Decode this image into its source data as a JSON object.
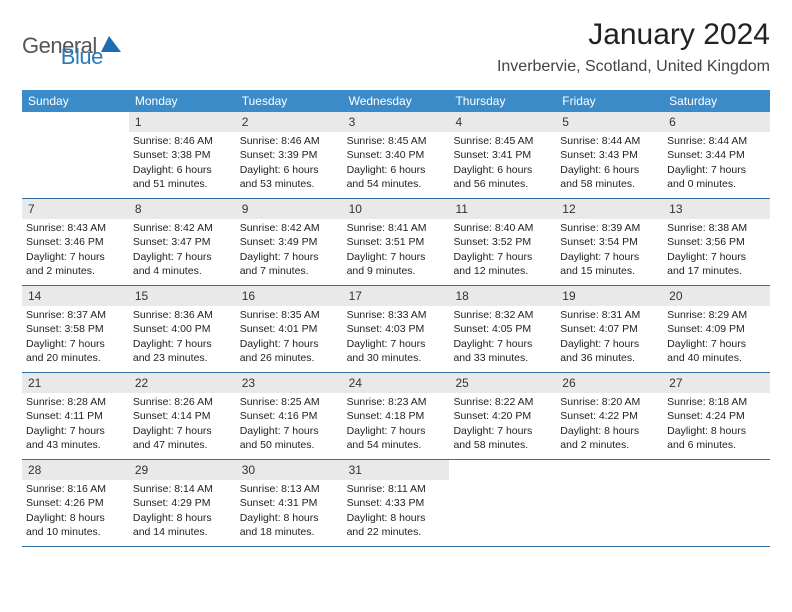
{
  "colors": {
    "header_bg": "#3b8bc9",
    "daynum_bg": "#e9e9e9",
    "week_divider": "#2f6fa3",
    "logo_gray": "#555555",
    "logo_blue": "#2a7ab9"
  },
  "logo": {
    "part1": "General",
    "part2": "Blue"
  },
  "title": "January 2024",
  "location": "Inverbervie, Scotland, United Kingdom",
  "days_of_week": [
    "Sunday",
    "Monday",
    "Tuesday",
    "Wednesday",
    "Thursday",
    "Friday",
    "Saturday"
  ],
  "weeks": [
    [
      {
        "empty": true
      },
      {
        "n": "1",
        "sunrise": "Sunrise: 8:46 AM",
        "sunset": "Sunset: 3:38 PM",
        "daylight": "Daylight: 6 hours and 51 minutes."
      },
      {
        "n": "2",
        "sunrise": "Sunrise: 8:46 AM",
        "sunset": "Sunset: 3:39 PM",
        "daylight": "Daylight: 6 hours and 53 minutes."
      },
      {
        "n": "3",
        "sunrise": "Sunrise: 8:45 AM",
        "sunset": "Sunset: 3:40 PM",
        "daylight": "Daylight: 6 hours and 54 minutes."
      },
      {
        "n": "4",
        "sunrise": "Sunrise: 8:45 AM",
        "sunset": "Sunset: 3:41 PM",
        "daylight": "Daylight: 6 hours and 56 minutes."
      },
      {
        "n": "5",
        "sunrise": "Sunrise: 8:44 AM",
        "sunset": "Sunset: 3:43 PM",
        "daylight": "Daylight: 6 hours and 58 minutes."
      },
      {
        "n": "6",
        "sunrise": "Sunrise: 8:44 AM",
        "sunset": "Sunset: 3:44 PM",
        "daylight": "Daylight: 7 hours and 0 minutes."
      }
    ],
    [
      {
        "n": "7",
        "sunrise": "Sunrise: 8:43 AM",
        "sunset": "Sunset: 3:46 PM",
        "daylight": "Daylight: 7 hours and 2 minutes."
      },
      {
        "n": "8",
        "sunrise": "Sunrise: 8:42 AM",
        "sunset": "Sunset: 3:47 PM",
        "daylight": "Daylight: 7 hours and 4 minutes."
      },
      {
        "n": "9",
        "sunrise": "Sunrise: 8:42 AM",
        "sunset": "Sunset: 3:49 PM",
        "daylight": "Daylight: 7 hours and 7 minutes."
      },
      {
        "n": "10",
        "sunrise": "Sunrise: 8:41 AM",
        "sunset": "Sunset: 3:51 PM",
        "daylight": "Daylight: 7 hours and 9 minutes."
      },
      {
        "n": "11",
        "sunrise": "Sunrise: 8:40 AM",
        "sunset": "Sunset: 3:52 PM",
        "daylight": "Daylight: 7 hours and 12 minutes."
      },
      {
        "n": "12",
        "sunrise": "Sunrise: 8:39 AM",
        "sunset": "Sunset: 3:54 PM",
        "daylight": "Daylight: 7 hours and 15 minutes."
      },
      {
        "n": "13",
        "sunrise": "Sunrise: 8:38 AM",
        "sunset": "Sunset: 3:56 PM",
        "daylight": "Daylight: 7 hours and 17 minutes."
      }
    ],
    [
      {
        "n": "14",
        "sunrise": "Sunrise: 8:37 AM",
        "sunset": "Sunset: 3:58 PM",
        "daylight": "Daylight: 7 hours and 20 minutes."
      },
      {
        "n": "15",
        "sunrise": "Sunrise: 8:36 AM",
        "sunset": "Sunset: 4:00 PM",
        "daylight": "Daylight: 7 hours and 23 minutes."
      },
      {
        "n": "16",
        "sunrise": "Sunrise: 8:35 AM",
        "sunset": "Sunset: 4:01 PM",
        "daylight": "Daylight: 7 hours and 26 minutes."
      },
      {
        "n": "17",
        "sunrise": "Sunrise: 8:33 AM",
        "sunset": "Sunset: 4:03 PM",
        "daylight": "Daylight: 7 hours and 30 minutes."
      },
      {
        "n": "18",
        "sunrise": "Sunrise: 8:32 AM",
        "sunset": "Sunset: 4:05 PM",
        "daylight": "Daylight: 7 hours and 33 minutes."
      },
      {
        "n": "19",
        "sunrise": "Sunrise: 8:31 AM",
        "sunset": "Sunset: 4:07 PM",
        "daylight": "Daylight: 7 hours and 36 minutes."
      },
      {
        "n": "20",
        "sunrise": "Sunrise: 8:29 AM",
        "sunset": "Sunset: 4:09 PM",
        "daylight": "Daylight: 7 hours and 40 minutes."
      }
    ],
    [
      {
        "n": "21",
        "sunrise": "Sunrise: 8:28 AM",
        "sunset": "Sunset: 4:11 PM",
        "daylight": "Daylight: 7 hours and 43 minutes."
      },
      {
        "n": "22",
        "sunrise": "Sunrise: 8:26 AM",
        "sunset": "Sunset: 4:14 PM",
        "daylight": "Daylight: 7 hours and 47 minutes."
      },
      {
        "n": "23",
        "sunrise": "Sunrise: 8:25 AM",
        "sunset": "Sunset: 4:16 PM",
        "daylight": "Daylight: 7 hours and 50 minutes."
      },
      {
        "n": "24",
        "sunrise": "Sunrise: 8:23 AM",
        "sunset": "Sunset: 4:18 PM",
        "daylight": "Daylight: 7 hours and 54 minutes."
      },
      {
        "n": "25",
        "sunrise": "Sunrise: 8:22 AM",
        "sunset": "Sunset: 4:20 PM",
        "daylight": "Daylight: 7 hours and 58 minutes."
      },
      {
        "n": "26",
        "sunrise": "Sunrise: 8:20 AM",
        "sunset": "Sunset: 4:22 PM",
        "daylight": "Daylight: 8 hours and 2 minutes."
      },
      {
        "n": "27",
        "sunrise": "Sunrise: 8:18 AM",
        "sunset": "Sunset: 4:24 PM",
        "daylight": "Daylight: 8 hours and 6 minutes."
      }
    ],
    [
      {
        "n": "28",
        "sunrise": "Sunrise: 8:16 AM",
        "sunset": "Sunset: 4:26 PM",
        "daylight": "Daylight: 8 hours and 10 minutes."
      },
      {
        "n": "29",
        "sunrise": "Sunrise: 8:14 AM",
        "sunset": "Sunset: 4:29 PM",
        "daylight": "Daylight: 8 hours and 14 minutes."
      },
      {
        "n": "30",
        "sunrise": "Sunrise: 8:13 AM",
        "sunset": "Sunset: 4:31 PM",
        "daylight": "Daylight: 8 hours and 18 minutes."
      },
      {
        "n": "31",
        "sunrise": "Sunrise: 8:11 AM",
        "sunset": "Sunset: 4:33 PM",
        "daylight": "Daylight: 8 hours and 22 minutes."
      },
      {
        "empty": true
      },
      {
        "empty": true
      },
      {
        "empty": true
      }
    ]
  ]
}
